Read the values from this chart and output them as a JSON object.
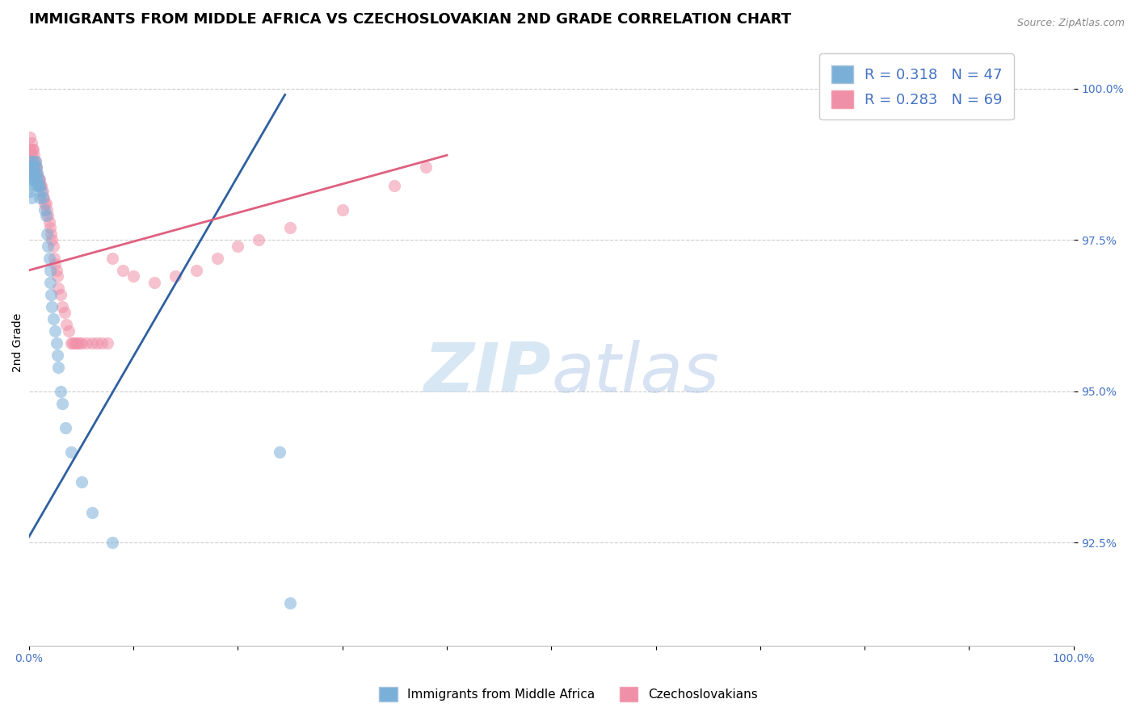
{
  "title": "IMMIGRANTS FROM MIDDLE AFRICA VS CZECHOSLOVAKIAN 2ND GRADE CORRELATION CHART",
  "source_text": "Source: ZipAtlas.com",
  "ylabel": "2nd Grade",
  "xlim": [
    0.0,
    1.0
  ],
  "ylim": [
    0.908,
    1.008
  ],
  "yticks": [
    0.925,
    0.95,
    0.975,
    1.0
  ],
  "ytick_labels": [
    "92.5%",
    "95.0%",
    "97.5%",
    "100.0%"
  ],
  "xtick_labels_show": [
    "0.0%",
    "100.0%"
  ],
  "legend_entries": [
    {
      "label": "Immigrants from Middle Africa",
      "color": "#aac4e0",
      "R": "0.318",
      "N": "47"
    },
    {
      "label": "Czechoslovakians",
      "color": "#f4a0b0",
      "R": "0.283",
      "N": "69"
    }
  ],
  "blue_scatter_x": [
    0.001,
    0.001,
    0.001,
    0.002,
    0.002,
    0.002,
    0.003,
    0.003,
    0.004,
    0.004,
    0.005,
    0.005,
    0.006,
    0.006,
    0.007,
    0.007,
    0.008,
    0.008,
    0.009,
    0.009,
    0.01,
    0.01,
    0.012,
    0.013,
    0.015,
    0.016,
    0.017,
    0.018,
    0.019,
    0.02,
    0.02,
    0.021,
    0.022,
    0.023,
    0.025,
    0.026,
    0.027,
    0.028,
    0.03,
    0.032,
    0.035,
    0.04,
    0.05,
    0.06,
    0.08,
    0.24,
    0.25
  ],
  "blue_scatter_y": [
    0.988,
    0.985,
    0.983,
    0.986,
    0.984,
    0.982,
    0.987,
    0.985,
    0.988,
    0.986,
    0.987,
    0.985,
    0.988,
    0.986,
    0.987,
    0.985,
    0.986,
    0.984,
    0.985,
    0.984,
    0.984,
    0.982,
    0.983,
    0.982,
    0.98,
    0.979,
    0.976,
    0.974,
    0.972,
    0.97,
    0.968,
    0.966,
    0.964,
    0.962,
    0.96,
    0.958,
    0.956,
    0.954,
    0.95,
    0.948,
    0.944,
    0.94,
    0.935,
    0.93,
    0.925,
    0.94,
    0.915
  ],
  "pink_scatter_x": [
    0.001,
    0.001,
    0.001,
    0.001,
    0.002,
    0.002,
    0.002,
    0.003,
    0.003,
    0.003,
    0.004,
    0.004,
    0.004,
    0.005,
    0.005,
    0.006,
    0.006,
    0.007,
    0.007,
    0.008,
    0.009,
    0.01,
    0.011,
    0.012,
    0.013,
    0.014,
    0.015,
    0.016,
    0.017,
    0.018,
    0.019,
    0.02,
    0.021,
    0.022,
    0.023,
    0.024,
    0.025,
    0.026,
    0.027,
    0.028,
    0.03,
    0.032,
    0.034,
    0.036,
    0.038,
    0.04,
    0.042,
    0.044,
    0.046,
    0.048,
    0.05,
    0.055,
    0.06,
    0.065,
    0.07,
    0.075,
    0.08,
    0.09,
    0.1,
    0.12,
    0.14,
    0.16,
    0.18,
    0.2,
    0.22,
    0.25,
    0.3,
    0.35,
    0.38
  ],
  "pink_scatter_y": [
    0.992,
    0.99,
    0.988,
    0.986,
    0.991,
    0.989,
    0.987,
    0.99,
    0.988,
    0.986,
    0.99,
    0.988,
    0.986,
    0.989,
    0.987,
    0.988,
    0.987,
    0.987,
    0.986,
    0.986,
    0.985,
    0.985,
    0.984,
    0.984,
    0.983,
    0.982,
    0.981,
    0.981,
    0.98,
    0.979,
    0.978,
    0.977,
    0.976,
    0.975,
    0.974,
    0.972,
    0.971,
    0.97,
    0.969,
    0.967,
    0.966,
    0.964,
    0.963,
    0.961,
    0.96,
    0.958,
    0.958,
    0.958,
    0.958,
    0.958,
    0.958,
    0.958,
    0.958,
    0.958,
    0.958,
    0.958,
    0.972,
    0.97,
    0.969,
    0.968,
    0.969,
    0.97,
    0.972,
    0.974,
    0.975,
    0.977,
    0.98,
    0.984,
    0.987
  ],
  "blue_line_x": [
    0.0,
    0.245
  ],
  "blue_line_y": [
    0.926,
    0.999
  ],
  "pink_line_x": [
    0.0,
    0.4
  ],
  "pink_line_y": [
    0.97,
    0.989
  ],
  "dot_color_blue": "#7ab0d8",
  "dot_color_pink": "#f090a8",
  "line_color_blue": "#3060a0",
  "line_color_pink": "#e06080",
  "grid_color": "#cccccc",
  "background_color": "#ffffff",
  "title_fontsize": 13,
  "axis_label_fontsize": 10,
  "tick_fontsize": 10,
  "legend_fontsize": 13,
  "dot_size": 120,
  "dot_alpha": 0.55
}
